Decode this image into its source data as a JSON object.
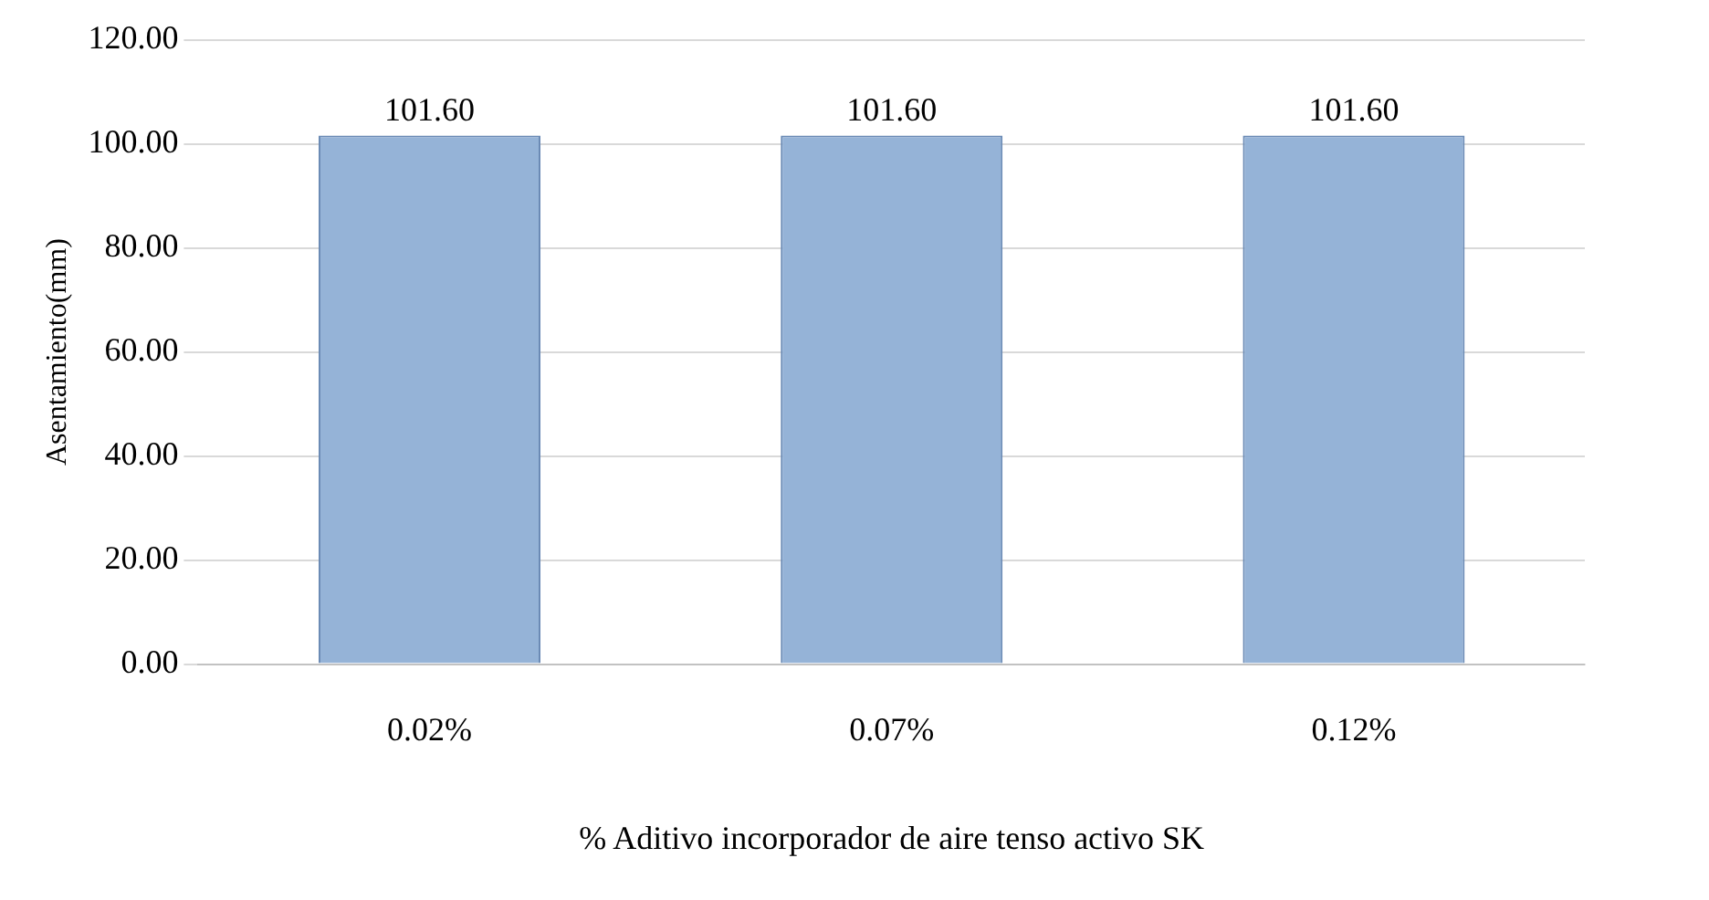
{
  "chart_data": {
    "type": "bar",
    "xlabel": "% Aditivo incorporador de aire tenso activo SK",
    "ylabel": "Asentamiento(mm)",
    "categories": [
      "0.02%",
      "0.07%",
      "0.12%"
    ],
    "values": [
      101.6,
      101.6,
      101.6
    ],
    "value_labels": [
      "101.60",
      "101.60",
      "101.60"
    ],
    "color": "#95b3d7",
    "ylim": [
      0,
      120
    ],
    "yticks": [
      {
        "value": 0,
        "label": "0.00"
      },
      {
        "value": 20,
        "label": "20.00"
      },
      {
        "value": 40,
        "label": "40.00"
      },
      {
        "value": 60,
        "label": "60.00"
      },
      {
        "value": 80,
        "label": "80.00"
      },
      {
        "value": 100,
        "label": "100.00"
      },
      {
        "value": 120,
        "label": "120.00"
      }
    ],
    "grid": "y",
    "legend": false
  }
}
